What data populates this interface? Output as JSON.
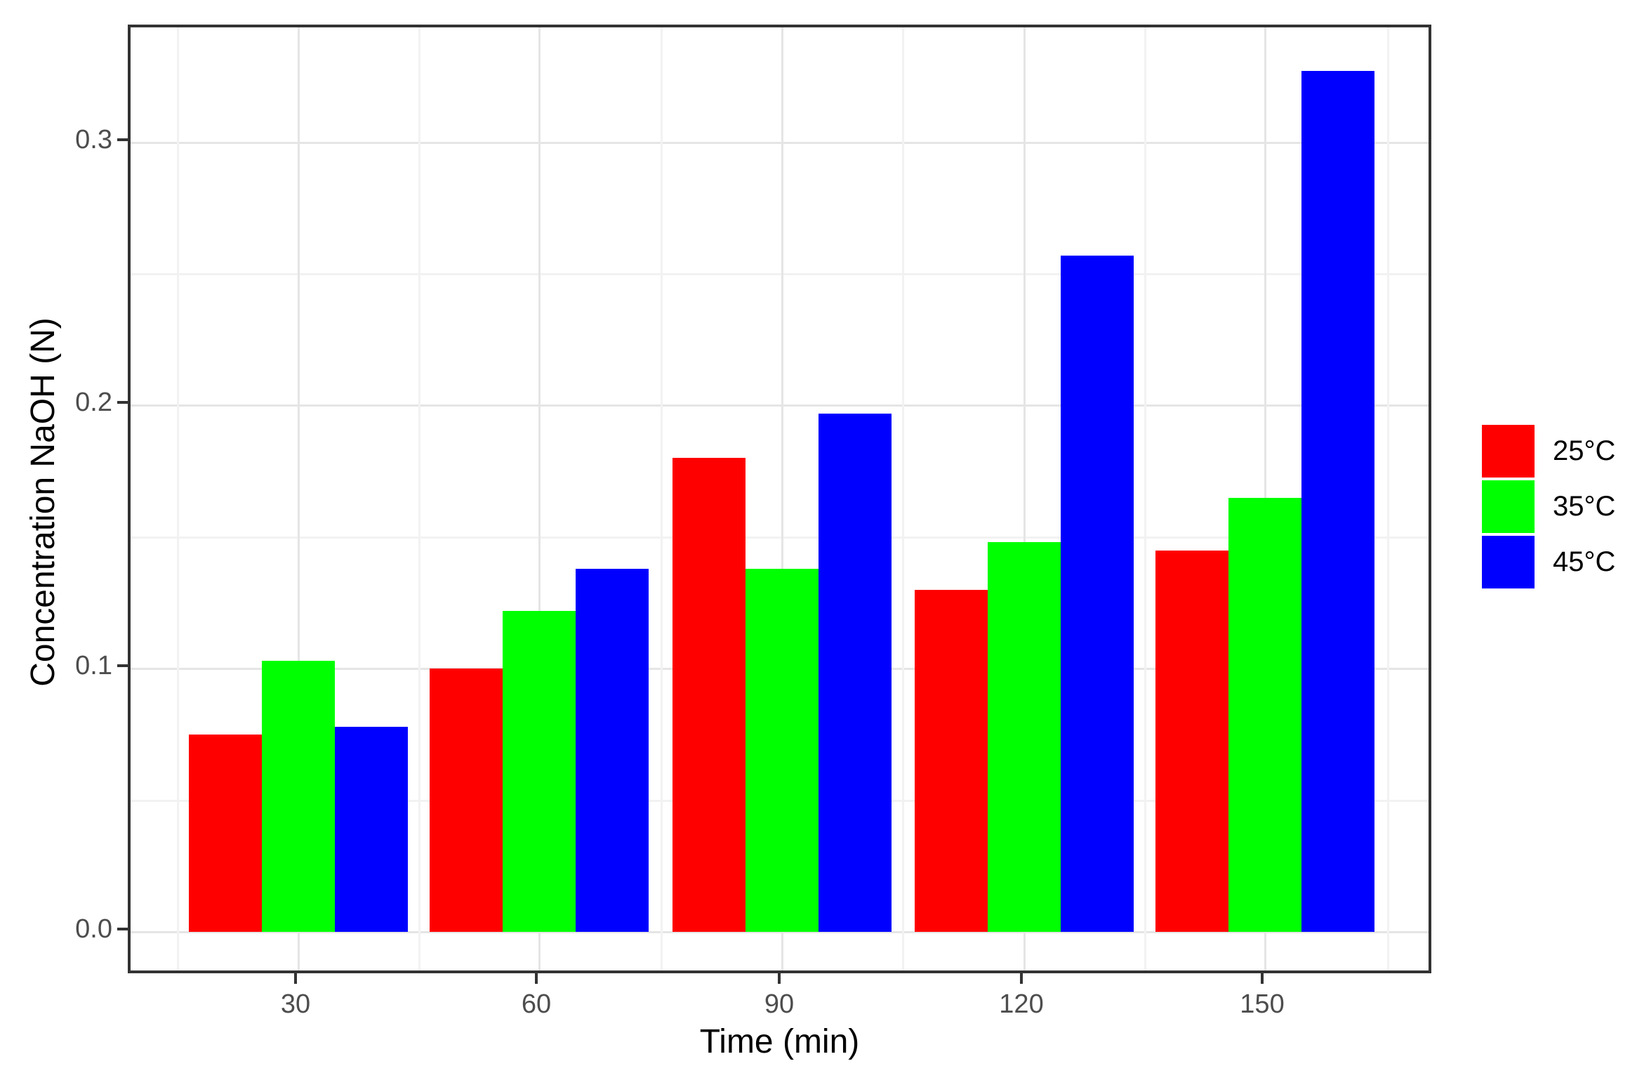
{
  "chart_data": {
    "type": "bar",
    "title": "",
    "xlabel": "Time (min)",
    "ylabel": "Concentration NaOH (N)",
    "categories": [
      "30",
      "60",
      "90",
      "120",
      "150"
    ],
    "series": [
      {
        "name": "25°C",
        "color": "#ff0000",
        "values": [
          0.075,
          0.1,
          0.18,
          0.13,
          0.145
        ]
      },
      {
        "name": "35°C",
        "color": "#00ff00",
        "values": [
          0.103,
          0.122,
          0.138,
          0.148,
          0.165
        ]
      },
      {
        "name": "45°C",
        "color": "#0000ff",
        "values": [
          0.078,
          0.138,
          0.197,
          0.257,
          0.327
        ]
      }
    ],
    "ylim": [
      0,
      0.344
    ],
    "y_major_ticks": [
      0.0,
      0.1,
      0.2,
      0.3
    ],
    "y_tick_labels": [
      "0.0",
      "0.1",
      "0.2",
      "0.3"
    ],
    "y_minor_gridlines": [
      0.05,
      0.15,
      0.25
    ],
    "grid": "major+minor",
    "legend_position": "right",
    "bar_grouping": "dodge"
  },
  "axes": {
    "x_title": "Time (min)",
    "y_title": "Concentration NaOH (N)"
  },
  "legend": {
    "items": [
      {
        "label": "25°C",
        "color": "#ff0000"
      },
      {
        "label": "35°C",
        "color": "#00ff00"
      },
      {
        "label": "45°C",
        "color": "#0000ff"
      }
    ]
  },
  "colors": {
    "panel_border": "#333333",
    "grid_major": "#e5e5e5",
    "grid_minor": "#f2f2f2",
    "tick_text": "#4d4d4d",
    "axis_title_text": "#000000",
    "background": "#ffffff"
  }
}
